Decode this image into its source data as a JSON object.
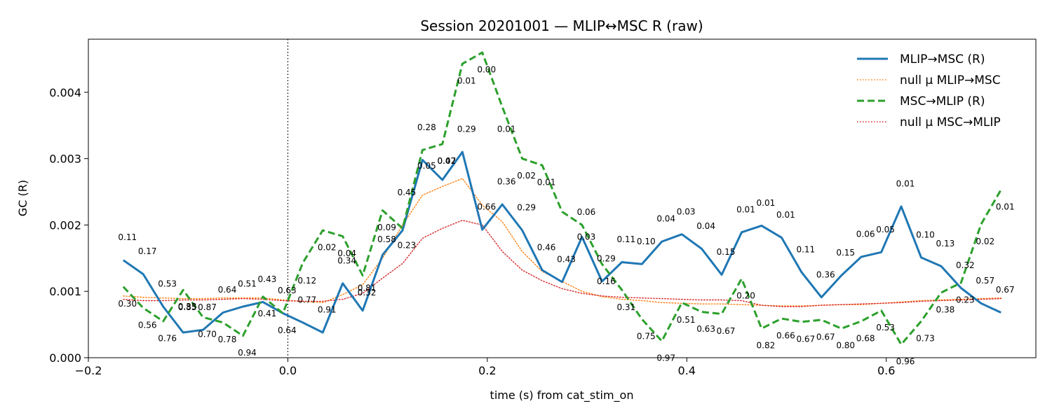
{
  "chart_data": {
    "type": "line",
    "title": "Session 20201001 — MLIP↔MSC R (raw)",
    "xlabel": "time (s) from cat_stim_on",
    "ylabel": "GC (R)",
    "xlim": [
      -0.2,
      0.75
    ],
    "ylim": [
      0.0,
      0.0048
    ],
    "xticks": [
      -0.2,
      0.0,
      0.2,
      0.4,
      0.6
    ],
    "xtick_labels": [
      "−0.2",
      "0.0",
      "0.2",
      "0.4",
      "0.6"
    ],
    "yticks": [
      0.0,
      0.001,
      0.002,
      0.003,
      0.004
    ],
    "ytick_labels": [
      "0.000",
      "0.001",
      "0.002",
      "0.003",
      "0.004"
    ],
    "grid": false,
    "legend_position": "top-right",
    "event_line_x": 0.0,
    "x": [
      -0.165,
      -0.145,
      -0.125,
      -0.105,
      -0.085,
      -0.065,
      -0.045,
      -0.025,
      -0.005,
      0.015,
      0.035,
      0.055,
      0.075,
      0.095,
      0.115,
      0.135,
      0.155,
      0.175,
      0.195,
      0.215,
      0.235,
      0.255,
      0.275,
      0.295,
      0.315,
      0.335,
      0.355,
      0.375,
      0.395,
      0.415,
      0.435,
      0.455,
      0.475,
      0.495,
      0.515,
      0.535,
      0.555,
      0.575,
      0.595,
      0.615,
      0.635,
      0.655,
      0.675,
      0.695,
      0.715
    ],
    "series": [
      {
        "name": "MLIP→MSC (R)",
        "color": "#1f77b4",
        "style": "solid",
        "values": [
          0.00147,
          0.00126,
          0.00077,
          0.00038,
          0.00042,
          0.00068,
          0.00077,
          0.00084,
          0.00067,
          0.00053,
          0.00038,
          0.00112,
          0.00071,
          0.00155,
          0.00192,
          0.00298,
          0.00268,
          0.0031,
          0.00193,
          0.00231,
          0.00192,
          0.00132,
          0.00114,
          0.00182,
          0.00115,
          0.00144,
          0.00141,
          0.00175,
          0.00186,
          0.00164,
          0.00125,
          0.00189,
          0.00199,
          0.00181,
          0.00129,
          0.00091,
          0.00124,
          0.00152,
          0.00159,
          0.00228,
          0.00151,
          0.00138,
          0.00105,
          0.00082,
          0.00068
        ]
      },
      {
        "name": "null μ MLIP→MSC",
        "color": "#ff7f0e",
        "style": "dotted",
        "values": [
          0.00093,
          0.00091,
          0.0009,
          0.00089,
          0.00089,
          0.0009,
          0.0009,
          0.0009,
          0.00087,
          0.00085,
          0.00083,
          0.00095,
          0.0011,
          0.0015,
          0.002,
          0.00245,
          0.00258,
          0.0027,
          0.0023,
          0.00205,
          0.0016,
          0.0013,
          0.00115,
          0.001,
          0.00092,
          0.00088,
          0.00086,
          0.00083,
          0.00082,
          0.00081,
          0.00081,
          0.0008,
          0.00079,
          0.00078,
          0.00078,
          0.00079,
          0.0008,
          0.0008,
          0.00082,
          0.00084,
          0.00086,
          0.00087,
          0.00088,
          0.00089,
          0.0009
        ]
      },
      {
        "name": "MSC→MLIP (R)",
        "color": "#2ca02c",
        "style": "dashed",
        "values": [
          0.00107,
          0.00075,
          0.00055,
          0.00102,
          0.00061,
          0.00053,
          0.00033,
          0.00092,
          0.00067,
          0.00143,
          0.00192,
          0.00183,
          0.00124,
          0.00222,
          0.00195,
          0.00313,
          0.00322,
          0.00443,
          0.0046,
          0.00378,
          0.003,
          0.0029,
          0.0022,
          0.002,
          0.00141,
          0.00102,
          0.00058,
          0.00025,
          0.00083,
          0.00069,
          0.00066,
          0.00119,
          0.00044,
          0.00059,
          0.00054,
          0.00057,
          0.00044,
          0.00055,
          0.00071,
          0.0002,
          0.00055,
          0.00098,
          0.00113,
          0.00201,
          0.00253
        ]
      },
      {
        "name": "null μ MSC→MLIP",
        "color": "#d62728",
        "style": "dotted",
        "values": [
          0.00088,
          0.00086,
          0.00086,
          0.00087,
          0.00087,
          0.00088,
          0.00089,
          0.00088,
          0.00086,
          0.00085,
          0.00085,
          0.00088,
          0.00097,
          0.0012,
          0.00142,
          0.0018,
          0.00195,
          0.00207,
          0.002,
          0.0016,
          0.00132,
          0.00116,
          0.00104,
          0.00097,
          0.00093,
          0.00091,
          0.0009,
          0.00089,
          0.00088,
          0.00087,
          0.00087,
          0.00086,
          0.00079,
          0.00077,
          0.00077,
          0.00079,
          0.0008,
          0.00081,
          0.00082,
          0.00083,
          0.00085,
          0.00086,
          0.00087,
          0.00088,
          0.00089
        ]
      }
    ],
    "annotations": [
      {
        "text": "0.11",
        "x": -0.165,
        "y": 0.00177
      },
      {
        "text": "0.17",
        "x": -0.145,
        "y": 0.00156
      },
      {
        "text": "0.53",
        "x": -0.125,
        "y": 0.00107
      },
      {
        "text": "0.33",
        "x": -0.105,
        "y": 0.00073
      },
      {
        "text": "0.87",
        "x": -0.085,
        "y": 0.00072
      },
      {
        "text": "0.64",
        "x": -0.065,
        "y": 0.00098
      },
      {
        "text": "0.51",
        "x": -0.045,
        "y": 0.00107
      },
      {
        "text": "0.43",
        "x": -0.025,
        "y": 0.00114
      },
      {
        "text": "0.63",
        "x": -0.005,
        "y": 0.00097
      },
      {
        "text": "0.12",
        "x": 0.015,
        "y": 0.00112
      },
      {
        "text": "0.91",
        "x": 0.035,
        "y": 0.00068
      },
      {
        "text": "0.34",
        "x": 0.055,
        "y": 0.00142
      },
      {
        "text": "0.81",
        "x": 0.075,
        "y": 0.00101
      },
      {
        "text": "0.58",
        "x": 0.095,
        "y": 0.00174
      },
      {
        "text": "0.45",
        "x": 0.115,
        "y": 0.00245
      },
      {
        "text": "0.05",
        "x": 0.135,
        "y": 0.00285
      },
      {
        "text": "0.07",
        "x": 0.155,
        "y": 0.00292
      },
      {
        "text": "0.29",
        "x": 0.175,
        "y": 0.0034
      },
      {
        "text": "0.66",
        "x": 0.195,
        "y": 0.00223
      },
      {
        "text": "0.36",
        "x": 0.215,
        "y": 0.00261
      },
      {
        "text": "0.29",
        "x": 0.235,
        "y": 0.00222
      },
      {
        "text": "0.46",
        "x": 0.255,
        "y": 0.00162
      },
      {
        "text": "0.43",
        "x": 0.275,
        "y": 0.00144
      },
      {
        "text": "0.03",
        "x": 0.295,
        "y": 0.00178
      },
      {
        "text": "0.29",
        "x": 0.315,
        "y": 0.00145
      },
      {
        "text": "0.11",
        "x": 0.335,
        "y": 0.00174
      },
      {
        "text": "0.10",
        "x": 0.355,
        "y": 0.00171
      },
      {
        "text": "0.04",
        "x": 0.375,
        "y": 0.00205
      },
      {
        "text": "0.03",
        "x": 0.395,
        "y": 0.00216
      },
      {
        "text": "0.04",
        "x": 0.415,
        "y": 0.00194
      },
      {
        "text": "0.15",
        "x": 0.435,
        "y": 0.00155
      },
      {
        "text": "0.01",
        "x": 0.455,
        "y": 0.00219
      },
      {
        "text": "0.01",
        "x": 0.475,
        "y": 0.00229
      },
      {
        "text": "0.01",
        "x": 0.495,
        "y": 0.00211
      },
      {
        "text": "0.11",
        "x": 0.515,
        "y": 0.00159
      },
      {
        "text": "0.36",
        "x": 0.535,
        "y": 0.00121
      },
      {
        "text": "0.15",
        "x": 0.555,
        "y": 0.00154
      },
      {
        "text": "0.06",
        "x": 0.575,
        "y": 0.00182
      },
      {
        "text": "0.05",
        "x": 0.595,
        "y": 0.00189
      },
      {
        "text": "0.01",
        "x": 0.615,
        "y": 0.00258
      },
      {
        "text": "0.10",
        "x": 0.635,
        "y": 0.00181
      },
      {
        "text": "0.13",
        "x": 0.655,
        "y": 0.00168
      },
      {
        "text": "0.32",
        "x": 0.675,
        "y": 0.00135
      },
      {
        "text": "0.57",
        "x": 0.695,
        "y": 0.00112
      },
      {
        "text": "0.67",
        "x": 0.715,
        "y": 0.00098
      },
      {
        "text": "0.30",
        "x": -0.165,
        "y": 0.00077
      },
      {
        "text": "0.56",
        "x": -0.145,
        "y": 0.00045
      },
      {
        "text": "0.76",
        "x": -0.125,
        "y": 0.00025
      },
      {
        "text": "0.85",
        "x": -0.105,
        "y": 0.00072
      },
      {
        "text": "0.70",
        "x": -0.085,
        "y": 0.00031
      },
      {
        "text": "0.78",
        "x": -0.065,
        "y": 0.00023
      },
      {
        "text": "0.94",
        "x": -0.045,
        "y": 3e-05
      },
      {
        "text": "0.41",
        "x": -0.025,
        "y": 0.00062
      },
      {
        "text": "0.64",
        "x": -0.005,
        "y": 0.00037
      },
      {
        "text": "0.77",
        "x": 0.015,
        "y": 0.00083
      },
      {
        "text": "0.02",
        "x": 0.035,
        "y": 0.00162
      },
      {
        "text": "0.04",
        "x": 0.055,
        "y": 0.00153
      },
      {
        "text": "0.32",
        "x": 0.075,
        "y": 0.00094
      },
      {
        "text": "0.09",
        "x": 0.095,
        "y": 0.00192
      },
      {
        "text": "0.23",
        "x": 0.115,
        "y": 0.00165
      },
      {
        "text": "0.28",
        "x": 0.135,
        "y": 0.00343
      },
      {
        "text": "0.42",
        "x": 0.155,
        "y": 0.00292
      },
      {
        "text": "0.01",
        "x": 0.175,
        "y": 0.00413
      },
      {
        "text": "0.00",
        "x": 0.195,
        "y": 0.0043
      },
      {
        "text": "0.01",
        "x": 0.215,
        "y": 0.0034
      },
      {
        "text": "0.02",
        "x": 0.235,
        "y": 0.0027
      },
      {
        "text": "0.01",
        "x": 0.255,
        "y": 0.0026
      },
      {
        "text": "0.06",
        "x": 0.295,
        "y": 0.00215
      },
      {
        "text": "0.16",
        "x": 0.315,
        "y": 0.00111
      },
      {
        "text": "0.31",
        "x": 0.335,
        "y": 0.00072
      },
      {
        "text": "0.75",
        "x": 0.355,
        "y": 0.00028
      },
      {
        "text": "0.97",
        "x": 0.375,
        "y": -5e-05
      },
      {
        "text": "0.51",
        "x": 0.395,
        "y": 0.00053
      },
      {
        "text": "0.63",
        "x": 0.415,
        "y": 0.00039
      },
      {
        "text": "0.67",
        "x": 0.435,
        "y": 0.00036
      },
      {
        "text": "0.20",
        "x": 0.455,
        "y": 0.00089
      },
      {
        "text": "0.82",
        "x": 0.475,
        "y": 0.00014
      },
      {
        "text": "0.66",
        "x": 0.495,
        "y": 0.00029
      },
      {
        "text": "0.67",
        "x": 0.515,
        "y": 0.00024
      },
      {
        "text": "0.67",
        "x": 0.535,
        "y": 0.00027
      },
      {
        "text": "0.80",
        "x": 0.555,
        "y": 0.00014
      },
      {
        "text": "0.68",
        "x": 0.575,
        "y": 0.00025
      },
      {
        "text": "0.53",
        "x": 0.595,
        "y": 0.00041
      },
      {
        "text": "0.96",
        "x": 0.615,
        "y": -0.0001
      },
      {
        "text": "0.73",
        "x": 0.635,
        "y": 0.00025
      },
      {
        "text": "0.38",
        "x": 0.655,
        "y": 0.00068
      },
      {
        "text": "0.23",
        "x": 0.675,
        "y": 0.00083
      },
      {
        "text": "0.02",
        "x": 0.695,
        "y": 0.00171
      },
      {
        "text": "0.01",
        "x": 0.715,
        "y": 0.00223
      }
    ]
  }
}
